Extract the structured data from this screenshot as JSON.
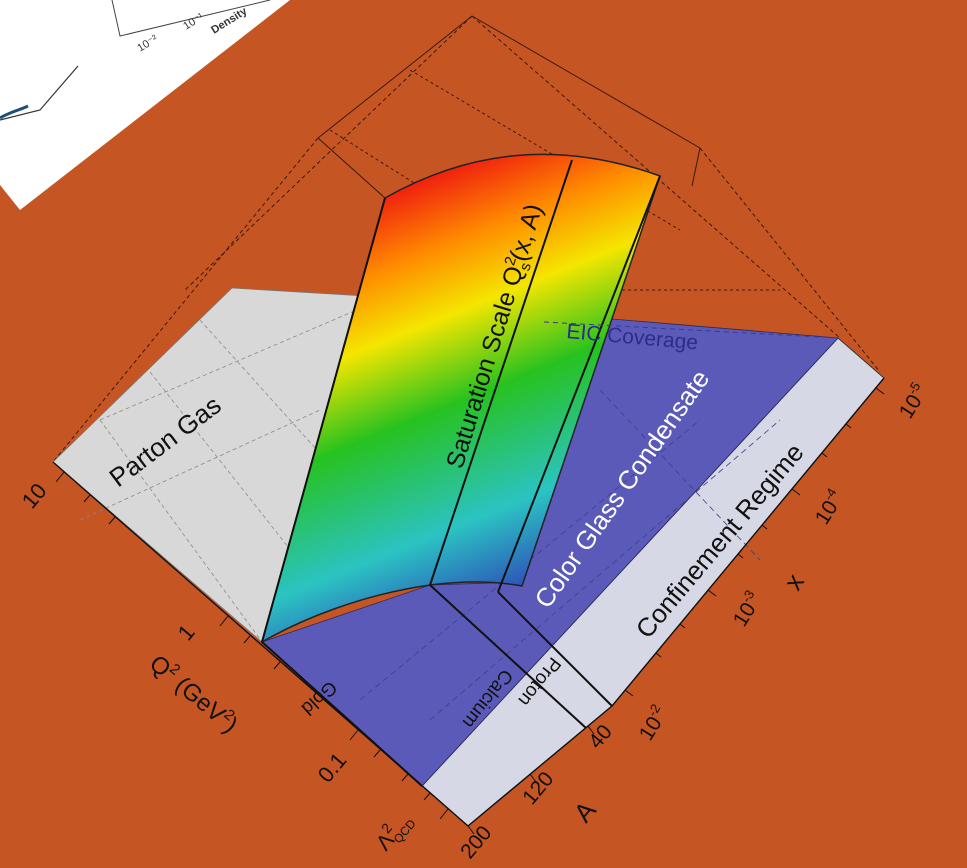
{
  "background_color": "#c65524",
  "colors": {
    "parton_gas": "#d8d8d8",
    "cgc": "#5b5ab8",
    "confinement": "#d6d8e6",
    "gradient_stops": [
      "#ee1111",
      "#ff8c00",
      "#f4e600",
      "#27c21f",
      "#2bc3c3",
      "#2e3ab6"
    ]
  },
  "inset": {
    "tick_labels": [
      "10⁻²",
      "10⁻¹"
    ],
    "axis_label_fragment": "Density"
  },
  "regions": {
    "parton_gas": "Parton Gas",
    "saturation": "Saturation Scale Q",
    "saturation_sup": "2",
    "saturation_sub": "s",
    "saturation_args": "(x, A)",
    "eic": "EIC Coverage",
    "cgc": "Color Glass Condensate",
    "confinement": "Confinement Regime"
  },
  "nuclei": [
    "Gold",
    "Calcium",
    "Proton"
  ],
  "q2_axis": {
    "label_main": "Q",
    "label_sup": "2",
    "label_units": " (GeV",
    "label_units_sup": "2",
    "label_close": ")",
    "ticks": [
      "10",
      "1",
      "0.1"
    ],
    "lambda": "Λ",
    "lambda_sup": "2",
    "lambda_sub": "QCD"
  },
  "a_axis": {
    "label": "A",
    "ticks": [
      "200",
      "120",
      "40"
    ]
  },
  "x_axis": {
    "label": "x",
    "base": "10",
    "exponents": [
      "-2",
      "-3",
      "-4",
      "-5"
    ]
  }
}
